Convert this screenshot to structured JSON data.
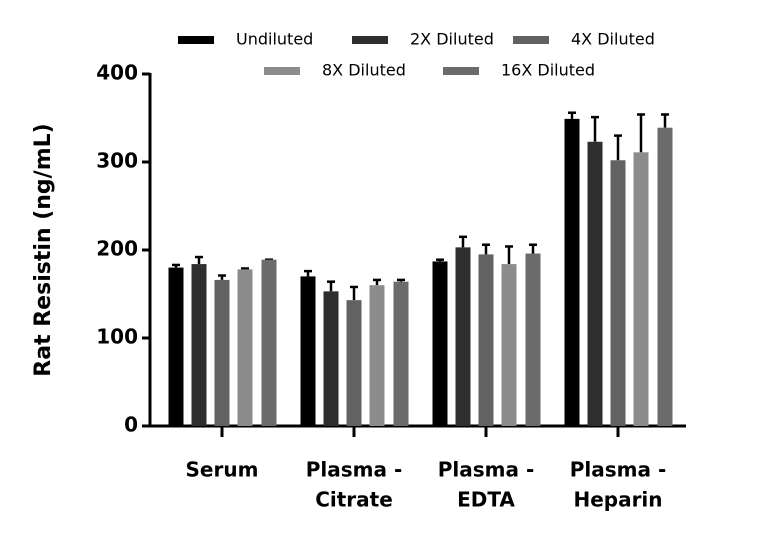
{
  "chart_data": {
    "type": "bar",
    "y_label": "Rat Resistin (ng/mL)",
    "categories": [
      [
        "Serum"
      ],
      [
        "Plasma -",
        "Citrate"
      ],
      [
        "Plasma -",
        "EDTA"
      ],
      [
        "Plasma -",
        "Heparin"
      ]
    ],
    "series": [
      {
        "name": "Undiluted",
        "color": "#000000",
        "values": [
          180,
          170,
          187,
          349
        ],
        "errors": [
          3,
          6,
          2,
          7
        ]
      },
      {
        "name": "2X Diluted",
        "color": "#2e2e2e",
        "values": [
          184,
          153,
          203,
          323
        ],
        "errors": [
          8,
          11,
          12,
          28
        ]
      },
      {
        "name": "4X Diluted",
        "color": "#626262",
        "values": [
          166,
          143,
          195,
          302
        ],
        "errors": [
          5,
          15,
          11,
          28
        ]
      },
      {
        "name": "8X Diluted",
        "color": "#8c8c8c",
        "values": [
          178,
          160,
          184,
          311
        ],
        "errors": [
          1,
          6,
          20,
          43
        ]
      },
      {
        "name": "16X Diluted",
        "color": "#6b6b6b",
        "values": [
          189,
          164,
          196,
          339
        ],
        "errors": [
          0,
          2,
          10,
          15
        ]
      }
    ],
    "ylim": [
      0,
      400
    ],
    "yticks": [
      0,
      100,
      200,
      300,
      400
    ]
  }
}
